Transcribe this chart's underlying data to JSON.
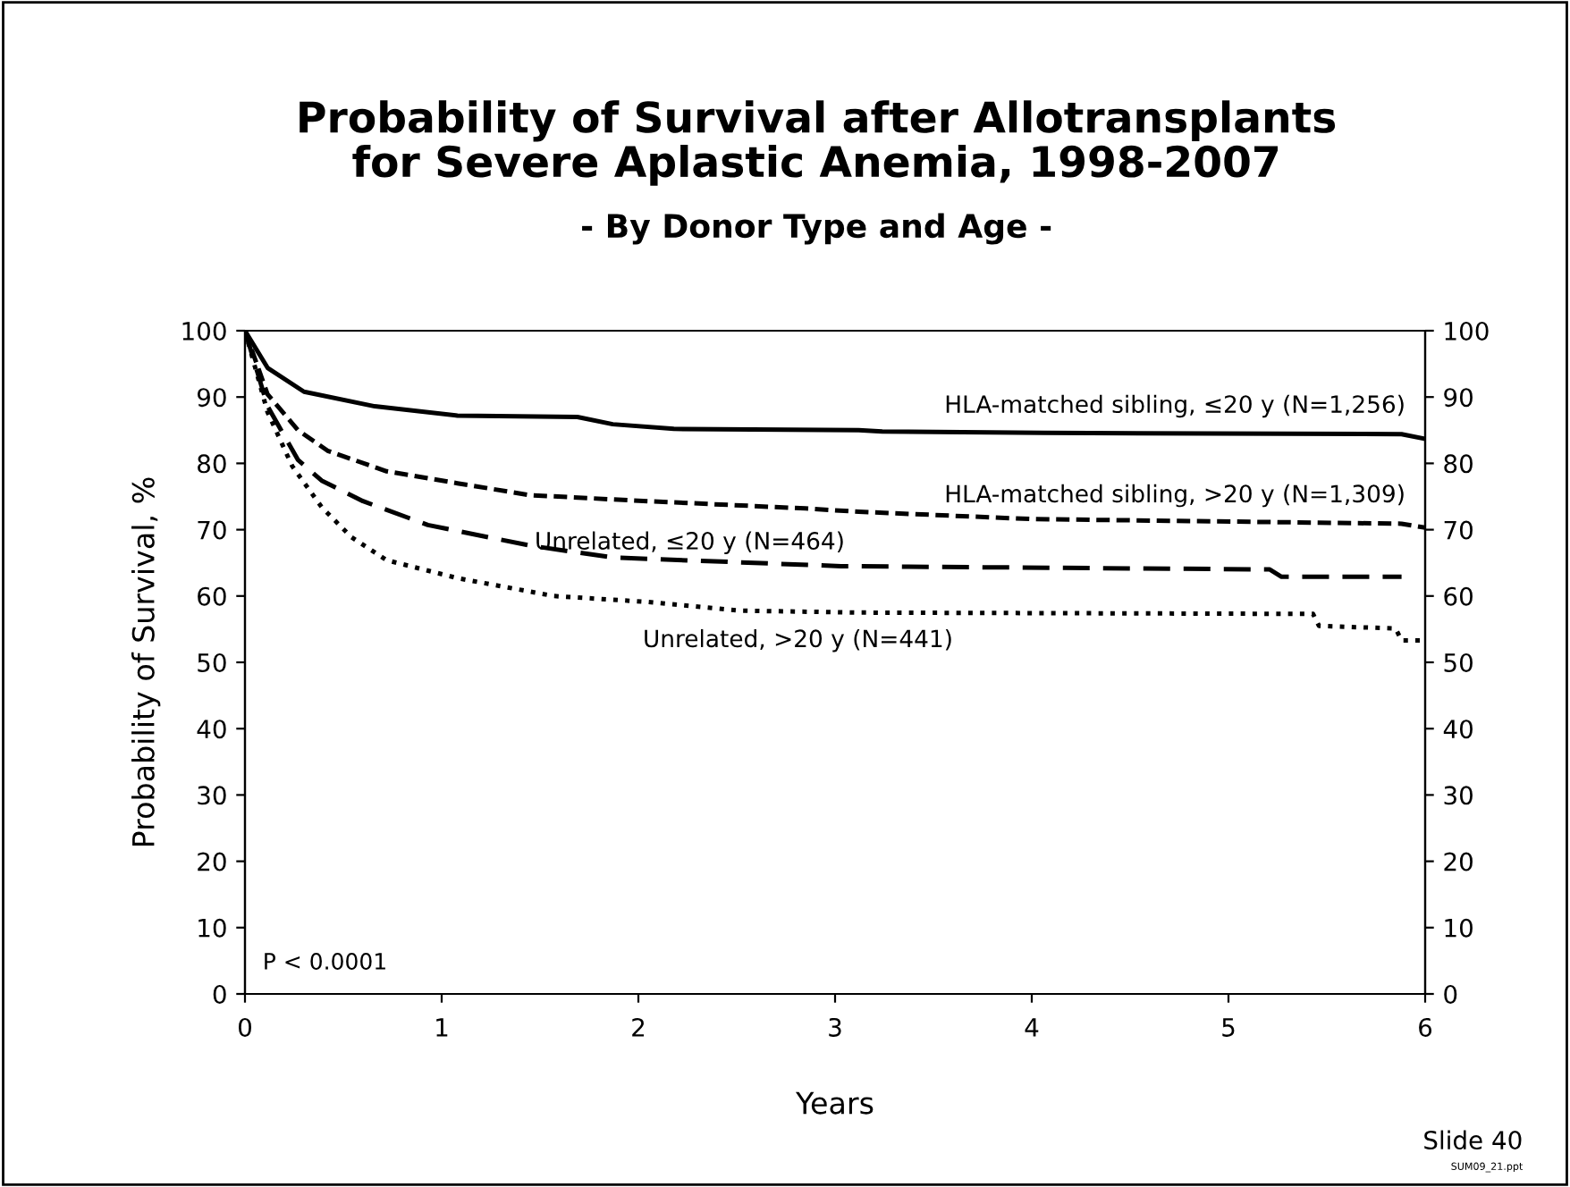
{
  "chart_data": {
    "type": "line",
    "title": "Probability of Survival after Allotransplants\nfor Severe Aplastic Anemia, 1998-2007",
    "subtitle": "- By Donor Type and Age -",
    "xlabel": "Years",
    "ylabel": "Probability of Survival, %",
    "xlim": [
      0,
      6
    ],
    "xticks": [
      0,
      1,
      2,
      3,
      4,
      5,
      6
    ],
    "ylim": [
      0,
      100
    ],
    "yticks": [
      0,
      10,
      20,
      30,
      40,
      50,
      60,
      70,
      80,
      90,
      100
    ],
    "y2lim": [
      0,
      100
    ],
    "y2ticks": [
      0,
      10,
      20,
      30,
      40,
      50,
      60,
      70,
      80,
      90,
      100
    ],
    "grid": false,
    "legend": false,
    "series": [
      {
        "name": "HLA-matched sibling, ≤20 y (N=1,256)",
        "color": "#000000",
        "line_style": "solid",
        "x": [
          0,
          0.115,
          0.3,
          0.66,
          1.08,
          1.69,
          1.87,
          2.18,
          3.12,
          3.24,
          4.06,
          5.88,
          6.0
        ],
        "values": [
          100,
          94.4,
          90.8,
          88.6,
          87.2,
          87.0,
          85.9,
          85.2,
          85.0,
          84.8,
          84.6,
          84.4,
          83.7
        ]
      },
      {
        "name": "HLA-matched sibling, >20 y (N=1,309)",
        "color": "#000000",
        "line_style": "dashed",
        "x": [
          0,
          0.115,
          0.27,
          0.42,
          0.72,
          1.08,
          1.45,
          2.05,
          2.85,
          3.12,
          4.0,
          5.88,
          6.0
        ],
        "values": [
          100,
          90.4,
          85,
          81.9,
          78.8,
          77,
          75.2,
          74.3,
          73.2,
          72.7,
          71.6,
          70.9,
          70.3
        ]
      },
      {
        "name": "Unrelated, ≤20 y (N=464)",
        "color": "#000000",
        "line_style": "dashed",
        "x": [
          0,
          0.115,
          0.27,
          0.39,
          0.6,
          0.93,
          1.45,
          1.87,
          3.03,
          5.21,
          5.27,
          5.88
        ],
        "values": [
          100,
          88.6,
          80.5,
          77.4,
          74.3,
          70.7,
          67.6,
          65.8,
          64.5,
          64,
          62.9,
          62.9
        ]
      },
      {
        "name": "Unrelated, >20 y (N=441)",
        "color": "#000000",
        "line_style": "dotted",
        "x": [
          0,
          0.115,
          0.24,
          0.39,
          0.54,
          0.72,
          1.08,
          1.57,
          2.05,
          2.51,
          3.12,
          5.43,
          5.46,
          5.85,
          5.88,
          6.0
        ],
        "values": [
          100,
          87.7,
          79.6,
          73.4,
          68.9,
          65.4,
          62.7,
          60,
          59.1,
          57.8,
          57.5,
          57.3,
          55.5,
          55.1,
          53.3,
          53.3
        ]
      }
    ],
    "annotations": [
      "P < 0.0001",
      "Slide 40",
      "SUM09_21.ppt"
    ]
  }
}
